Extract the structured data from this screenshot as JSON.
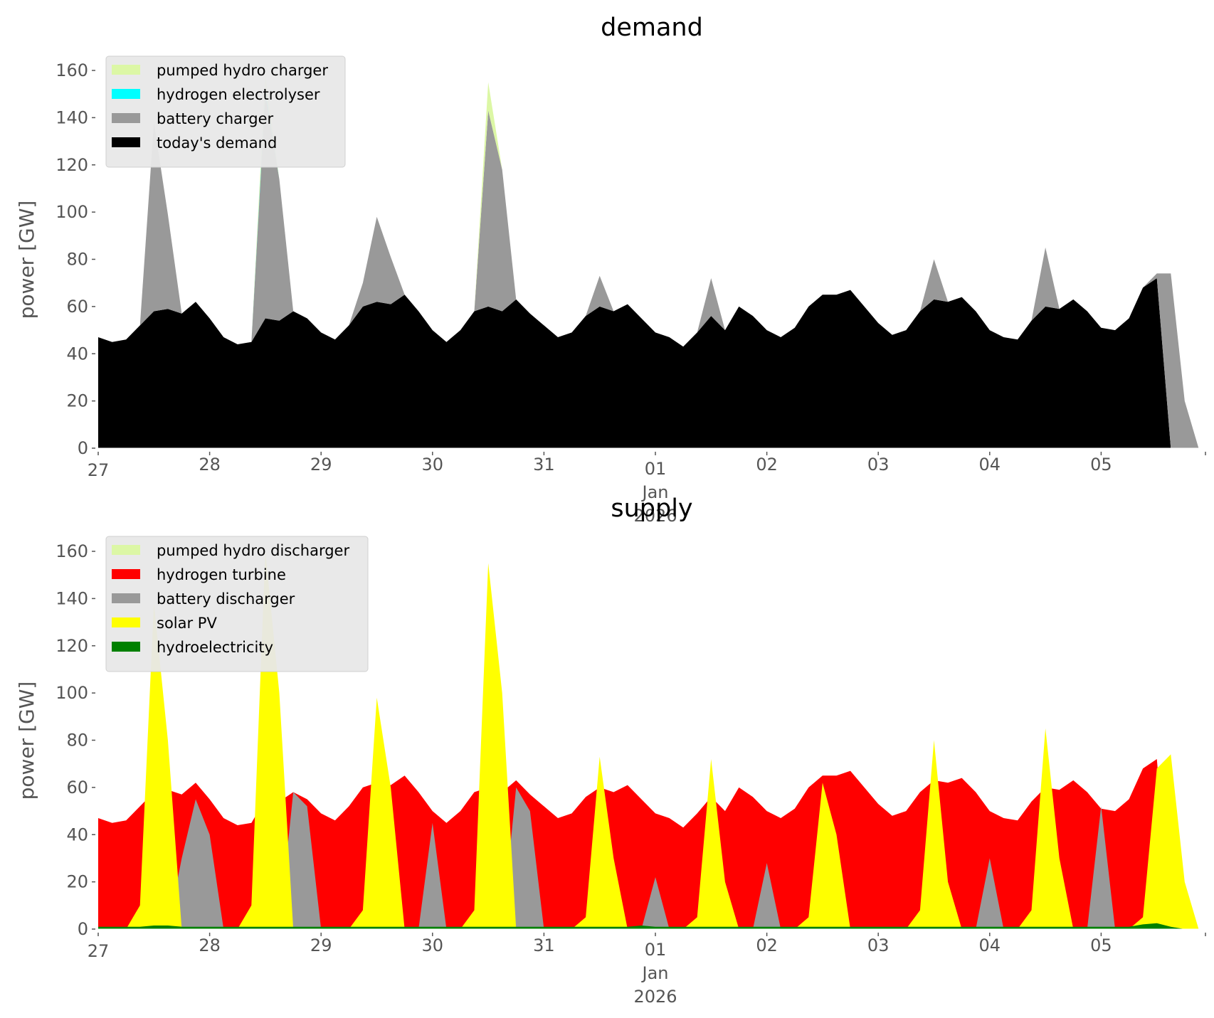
{
  "chart_data": [
    {
      "id": "demand",
      "type": "area",
      "stacked": true,
      "title": "demand",
      "xlabel": "",
      "ylabel": "power [GW]",
      "ylim": [
        0,
        165
      ],
      "yticks": [
        0,
        20,
        40,
        60,
        80,
        100,
        120,
        140,
        160
      ],
      "x_unit": "days since 27 Dec 2025 00:00",
      "xlim": [
        0,
        10
      ],
      "xticks": [
        {
          "t": 0,
          "label": "27"
        },
        {
          "t": 1,
          "label": "28"
        },
        {
          "t": 2,
          "label": "29"
        },
        {
          "t": 3,
          "label": "30"
        },
        {
          "t": 4,
          "label": "31"
        },
        {
          "t": 5,
          "label": "01",
          "sub": [
            "Jan",
            "2026"
          ]
        },
        {
          "t": 6,
          "label": "02"
        },
        {
          "t": 7,
          "label": "03"
        },
        {
          "t": 8,
          "label": "04"
        },
        {
          "t": 9,
          "label": "05"
        }
      ],
      "grid": false,
      "legend_position": "top-left",
      "legend": [
        {
          "label": "pumped hydro charger",
          "color": "#dcf7a5"
        },
        {
          "label": "hydrogen electrolyser",
          "color": "#00ffff"
        },
        {
          "label": "battery charger",
          "color": "#999999"
        },
        {
          "label": "today's demand",
          "color": "#000000"
        }
      ],
      "x_step_days": 0.125,
      "series": [
        {
          "name": "today's demand",
          "color": "#000000",
          "values": [
            47,
            45,
            46,
            52,
            58,
            59,
            57,
            62,
            55,
            47,
            44,
            45,
            55,
            54,
            58,
            55,
            49,
            46,
            52,
            60,
            62,
            61,
            65,
            58,
            50,
            45,
            50,
            58,
            60,
            58,
            63,
            57,
            52,
            47,
            49,
            56,
            60,
            58,
            61,
            55,
            49,
            47,
            43,
            49,
            56,
            50,
            60,
            56,
            50,
            47,
            51,
            60,
            65,
            65,
            67,
            60,
            53,
            48,
            50,
            58,
            63,
            62,
            64,
            58,
            50,
            47,
            46,
            54,
            60,
            59,
            63,
            58,
            51,
            50,
            55,
            68,
            72,
            0,
            0,
            0
          ]
        },
        {
          "name": "battery charger",
          "color": "#999999",
          "values": [
            0,
            0,
            0,
            0,
            80,
            40,
            0,
            0,
            0,
            0,
            0,
            0,
            95,
            60,
            0,
            0,
            0,
            0,
            0,
            10,
            36,
            20,
            0,
            0,
            0,
            0,
            0,
            0,
            83,
            60,
            0,
            0,
            0,
            0,
            0,
            0,
            13,
            0,
            0,
            0,
            0,
            0,
            0,
            0,
            16,
            0,
            0,
            0,
            0,
            0,
            0,
            0,
            0,
            0,
            0,
            0,
            0,
            0,
            0,
            0,
            17,
            0,
            0,
            0,
            0,
            0,
            0,
            0,
            25,
            0,
            0,
            0,
            0,
            0,
            0,
            0,
            2,
            74,
            20,
            0
          ]
        },
        {
          "name": "hydrogen electrolyser",
          "color": "#00ffff",
          "values": [
            0,
            0,
            0,
            0,
            0,
            0,
            0,
            0,
            0,
            0,
            0,
            0,
            2,
            0,
            0,
            0,
            0,
            0,
            0,
            0,
            0,
            0,
            0,
            0,
            0,
            0,
            0,
            0,
            0,
            0,
            0,
            0,
            0,
            0,
            0,
            0,
            0,
            0,
            0,
            0,
            0,
            0,
            0,
            0,
            0,
            0,
            0,
            0,
            0,
            0,
            0,
            0,
            0,
            0,
            0,
            0,
            0,
            0,
            0,
            0,
            0,
            0,
            0,
            0,
            0,
            0,
            0,
            0,
            0,
            0,
            0,
            0,
            0,
            0,
            0,
            0,
            0,
            0,
            0,
            0
          ]
        },
        {
          "name": "pumped hydro charger",
          "color": "#dcf7a5",
          "values": [
            0,
            0,
            0,
            0,
            0,
            0,
            0,
            0,
            0,
            0,
            0,
            0,
            6,
            0,
            0,
            0,
            0,
            0,
            0,
            0,
            0,
            0,
            0,
            0,
            0,
            0,
            0,
            0,
            12,
            0,
            0,
            0,
            0,
            0,
            0,
            0,
            0,
            0,
            0,
            0,
            0,
            0,
            0,
            0,
            0,
            0,
            0,
            0,
            0,
            0,
            0,
            0,
            0,
            0,
            0,
            0,
            0,
            0,
            0,
            0,
            0,
            0,
            0,
            0,
            0,
            0,
            0,
            0,
            0,
            0,
            0,
            0,
            0,
            0,
            0,
            0,
            0,
            0,
            0,
            0
          ]
        }
      ]
    },
    {
      "id": "supply",
      "type": "area",
      "stacked": false,
      "title": "supply",
      "xlabel": "",
      "ylabel": "power [GW]",
      "ylim": [
        0,
        165
      ],
      "yticks": [
        0,
        20,
        40,
        60,
        80,
        100,
        120,
        140,
        160
      ],
      "x_unit": "days since 27 Dec 2025 00:00",
      "xlim": [
        0,
        10
      ],
      "xticks": [
        {
          "t": 0,
          "label": "27"
        },
        {
          "t": 1,
          "label": "28"
        },
        {
          "t": 2,
          "label": "29"
        },
        {
          "t": 3,
          "label": "30"
        },
        {
          "t": 4,
          "label": "31"
        },
        {
          "t": 5,
          "label": "01",
          "sub": [
            "Jan",
            "2026"
          ]
        },
        {
          "t": 6,
          "label": "02"
        },
        {
          "t": 7,
          "label": "03"
        },
        {
          "t": 8,
          "label": "04"
        },
        {
          "t": 9,
          "label": "05"
        }
      ],
      "grid": false,
      "legend_position": "top-left",
      "legend": [
        {
          "label": "pumped hydro discharger",
          "color": "#dcf7a5"
        },
        {
          "label": "hydrogen turbine",
          "color": "#ff0000"
        },
        {
          "label": "battery discharger",
          "color": "#999999"
        },
        {
          "label": "solar PV",
          "color": "#ffff00"
        },
        {
          "label": "hydroelectricity",
          "color": "#008000"
        }
      ],
      "x_step_days": 0.125,
      "series": [
        {
          "name": "hydrogen turbine",
          "color": "#ff0000",
          "values": [
            47,
            45,
            46,
            52,
            58,
            59,
            57,
            62,
            55,
            47,
            44,
            45,
            55,
            54,
            58,
            55,
            49,
            46,
            52,
            60,
            62,
            61,
            65,
            58,
            50,
            45,
            50,
            58,
            60,
            58,
            63,
            57,
            52,
            47,
            49,
            56,
            60,
            58,
            61,
            55,
            49,
            47,
            43,
            49,
            56,
            50,
            60,
            56,
            50,
            47,
            51,
            60,
            65,
            65,
            67,
            60,
            53,
            48,
            50,
            58,
            63,
            62,
            64,
            58,
            50,
            47,
            46,
            54,
            60,
            59,
            63,
            58,
            51,
            50,
            55,
            68,
            72,
            0,
            0,
            0
          ]
        },
        {
          "name": "battery discharger",
          "color": "#999999",
          "values": [
            0,
            0,
            0,
            0,
            0,
            0,
            30,
            55,
            40,
            0,
            0,
            0,
            0,
            0,
            58,
            52,
            0,
            0,
            0,
            0,
            0,
            0,
            0,
            0,
            45,
            0,
            0,
            0,
            0,
            0,
            60,
            50,
            0,
            0,
            0,
            0,
            0,
            0,
            0,
            0,
            22,
            0,
            0,
            0,
            0,
            0,
            0,
            0,
            28,
            0,
            0,
            0,
            0,
            0,
            0,
            0,
            0,
            0,
            0,
            0,
            0,
            0,
            0,
            0,
            30,
            0,
            0,
            0,
            0,
            0,
            0,
            0,
            52,
            0,
            0,
            0,
            0,
            0,
            0,
            0
          ]
        },
        {
          "name": "solar PV",
          "color": "#ffff00",
          "values": [
            0,
            0,
            0,
            10,
            138,
            80,
            0,
            0,
            0,
            0,
            0,
            10,
            160,
            100,
            0,
            0,
            0,
            0,
            0,
            8,
            98,
            60,
            0,
            0,
            0,
            0,
            0,
            8,
            155,
            100,
            0,
            0,
            0,
            0,
            0,
            5,
            73,
            30,
            0,
            0,
            0,
            0,
            0,
            5,
            72,
            20,
            0,
            0,
            0,
            0,
            0,
            5,
            62,
            40,
            0,
            0,
            0,
            0,
            0,
            8,
            80,
            20,
            0,
            0,
            0,
            0,
            0,
            8,
            85,
            30,
            0,
            0,
            0,
            0,
            0,
            5,
            68,
            74,
            20,
            0
          ]
        },
        {
          "name": "hydroelectricity",
          "color": "#008000",
          "values": [
            1,
            1,
            1,
            1,
            1.5,
            1.5,
            1,
            1,
            1,
            1,
            1,
            1,
            1,
            1,
            1,
            1,
            1,
            1,
            1,
            1,
            1,
            1,
            1,
            1,
            1,
            1,
            1,
            1,
            1,
            1,
            1,
            1,
            1,
            1,
            1,
            1,
            1,
            1,
            1,
            1.5,
            1,
            1,
            1,
            1,
            1,
            1,
            1,
            1,
            1,
            1,
            1,
            1,
            1,
            1,
            1,
            1,
            1,
            1,
            1,
            1,
            1,
            1,
            1,
            1,
            1,
            1,
            1,
            1,
            1,
            1,
            1,
            1,
            1,
            1,
            1,
            2,
            2.5,
            1,
            0,
            0
          ]
        },
        {
          "name": "pumped hydro discharger",
          "color": "#dcf7a5",
          "values": [
            0,
            0,
            0,
            0,
            0,
            0,
            0,
            0,
            0,
            0,
            0,
            0,
            0,
            0,
            0,
            0,
            0,
            0,
            0,
            0,
            0,
            0,
            0,
            0,
            0,
            0,
            0,
            0,
            0,
            0,
            0,
            0,
            0,
            0,
            0,
            0,
            0,
            0,
            0,
            0,
            0,
            0,
            0,
            0,
            0,
            0,
            0,
            0,
            0,
            0,
            0,
            0,
            0,
            0,
            0,
            0,
            0,
            0,
            0,
            0,
            0,
            0,
            0,
            0,
            0,
            0,
            0,
            0,
            0,
            0,
            0,
            0,
            0,
            0,
            0,
            0,
            0,
            0,
            0,
            0
          ]
        }
      ]
    }
  ]
}
